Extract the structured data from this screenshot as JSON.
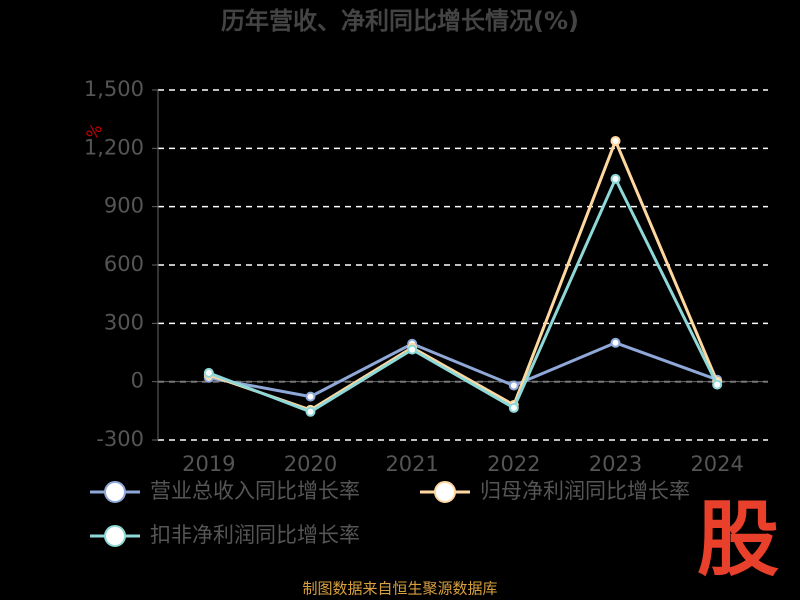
{
  "chart_data": {
    "type": "line",
    "title": "历年营收、净利同比增长情况(%)",
    "y_unit": "%",
    "categories": [
      "2019",
      "2020",
      "2021",
      "2022",
      "2023",
      "2024"
    ],
    "series": [
      {
        "name": "营业总收入同比增长率",
        "color": "#8fa8d8",
        "values": [
          20,
          -77,
          195,
          -20,
          200,
          10
        ]
      },
      {
        "name": "归母净利润同比增长率",
        "color": "#ffd8a0",
        "values": [
          35,
          -145,
          175,
          -120,
          1238,
          0
        ]
      },
      {
        "name": "扣非净利润同比增长率",
        "color": "#8ed8d8",
        "values": [
          45,
          -155,
          165,
          -135,
          1043,
          -15
        ]
      }
    ],
    "ylim": [
      -300,
      1500
    ],
    "yticks": [
      -300,
      0,
      300,
      600,
      900,
      {
        "value": 1200,
        "label": "1,200"
      },
      {
        "value": 1500,
        "label": "1,500"
      }
    ],
    "grid": true,
    "source": "制图数据来自恒生聚源数据库",
    "logo": "股"
  }
}
